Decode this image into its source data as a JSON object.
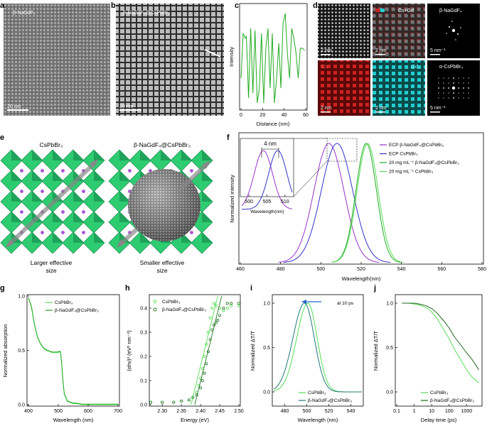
{
  "panels": {
    "a": {
      "letter": "a",
      "label": "β-NaGdF₄",
      "scale": "20 nm"
    },
    "b": {
      "letter": "b",
      "label": "β-NaGdF₄@CsPbBr₃",
      "scale": "20 nm"
    },
    "c": {
      "letter": "c"
    },
    "d": {
      "letter": "d",
      "tiles": [
        {
          "label": "",
          "scale": "2 nm"
        },
        {
          "label": "Cs+Gd",
          "scale": "2 nm"
        },
        {
          "label": "β-NaGdF₄",
          "scale": "5 nm⁻¹"
        },
        {
          "label": "Cs",
          "scale": "2 nm"
        },
        {
          "label": "Gd",
          "scale": "2 nm"
        },
        {
          "label": "α-CsPbBr₃",
          "scale": "5 nm⁻¹"
        }
      ]
    },
    "e": {
      "letter": "e",
      "left_title": "CsPbBr₃",
      "right_title": "β-NaGdF₄@CsPbBr₃",
      "left_caption_1": "Larger effective",
      "left_caption_2": "size",
      "right_caption_1": "Smaller effective",
      "right_caption_2": "size"
    },
    "f": {
      "letter": "f",
      "inset_label": "4 nm",
      "inset_xlabel": "Wavelength(nm)"
    },
    "g": {
      "letter": "g"
    },
    "h": {
      "letter": "h"
    },
    "i": {
      "letter": "i",
      "note": "at 10 ps"
    },
    "j": {
      "letter": "j"
    }
  },
  "colors": {
    "cs_green": "#33cc33",
    "core_green": "#22aa22",
    "ecp_purple": "#9933cc",
    "ecp_blue": "#3333cc",
    "i_teal": "#227777",
    "i_light": "#33dd33",
    "arrow_blue": "#2266cc",
    "cs_map": "#cc2222",
    "gd_map": "#22cccc",
    "octa": "#2ecc71"
  },
  "chart_data": [
    {
      "panel": "c",
      "type": "line",
      "xlabel": "Distance (nm)",
      "ylabel": "Intensity",
      "xlim": [
        0,
        60
      ],
      "xticks": [
        "0",
        "20",
        "40",
        "60"
      ],
      "series": [
        {
          "x": [
            0,
            2,
            4,
            5,
            7,
            9,
            11,
            13,
            15,
            17,
            19,
            21,
            23,
            25,
            27,
            29,
            31,
            33,
            35,
            37,
            39,
            41,
            43,
            45,
            47,
            49,
            51,
            53,
            55,
            57,
            59
          ],
          "y": [
            0.3,
            0.75,
            0.7,
            0.72,
            0.1,
            0.8,
            0.15,
            0.78,
            0.05,
            0.2,
            0.75,
            0.05,
            0.6,
            0.8,
            0.2,
            0.75,
            0.05,
            0.3,
            0.65,
            0.2,
            0.85,
            0.95,
            0.55,
            0.3,
            0.8,
            0.7,
            0.55,
            0.3,
            0.6,
            0.6,
            0.58
          ]
        }
      ]
    },
    {
      "panel": "f",
      "type": "line",
      "xlabel": "Wavelength(nm)",
      "ylabel": "Normalized intensity",
      "xlim": [
        460,
        580
      ],
      "xticks": [
        "460",
        "480",
        "500",
        "520",
        "540",
        "560",
        "580"
      ],
      "series": [
        {
          "name": "ECP β-NaGdF₄@CsPbBr₃",
          "center": 504,
          "width": 10.5,
          "color": "#9933cc"
        },
        {
          "name": "ECP CsPbBr₃",
          "center": 508,
          "width": 11,
          "color": "#3333cc"
        },
        {
          "name": "20 mg mL⁻¹ β-NaGdF₄@CsPbBr₃",
          "center": 522.5,
          "width": 7.2,
          "color": "#22aa22"
        },
        {
          "name": "20 mg mL⁻¹ CsPbBr₃",
          "center": 523.2,
          "width": 7.4,
          "color": "#55dd55"
        }
      ],
      "inset": {
        "xticks": [
          "500",
          "505",
          "510"
        ],
        "xlim": [
          498,
          512
        ]
      }
    },
    {
      "panel": "g",
      "type": "line",
      "xlabel": "Wavelength (nm)",
      "ylabel": "Normalized absorption",
      "xlim": [
        400,
        700
      ],
      "ylim": [
        0,
        1.0
      ],
      "xticks": [
        "400",
        "500",
        "600",
        "700"
      ],
      "yticks": [
        "0.0",
        "0.5",
        "1.0"
      ],
      "series": [
        {
          "name": "CsPbBr₃",
          "color": "#55dd55"
        },
        {
          "name": "β-NaGdF₄@CsPbBr₃",
          "color": "#22aa22"
        }
      ],
      "x": [
        400,
        410,
        420,
        430,
        440,
        450,
        460,
        470,
        480,
        490,
        500,
        505,
        508,
        512,
        516,
        520,
        530,
        540,
        550,
        560,
        580,
        600,
        650,
        700
      ],
      "y": [
        0.98,
        0.9,
        0.74,
        0.62,
        0.56,
        0.52,
        0.5,
        0.49,
        0.48,
        0.48,
        0.48,
        0.49,
        0.47,
        0.36,
        0.2,
        0.1,
        0.03,
        0.02,
        0.01,
        0.01,
        0.0,
        0.0,
        0.0,
        0.0
      ]
    },
    {
      "panel": "h",
      "type": "scatter",
      "xlabel": "Energy (eV)",
      "ylabel": "(αhν)² (eV² nm⁻²)",
      "xlim": [
        2.27,
        2.5
      ],
      "ylim": [
        0,
        0.45
      ],
      "xticks": [
        "2.30",
        "2.35",
        "2.40",
        "2.45",
        "2.50"
      ],
      "yticks": [
        "0.0",
        "0.1",
        "0.2",
        "0.3",
        "0.4"
      ],
      "series": [
        {
          "name": "CsPbBr₃",
          "color": "#55dd55",
          "x": [
            2.27,
            2.3,
            2.33,
            2.35,
            2.37,
            2.38,
            2.39,
            2.395,
            2.4,
            2.405,
            2.41,
            2.415,
            2.42,
            2.425,
            2.43,
            2.435,
            2.44,
            2.45,
            2.46,
            2.47,
            2.48,
            2.5
          ],
          "y": [
            0.01,
            0.01,
            0.01,
            0.015,
            0.02,
            0.03,
            0.05,
            0.08,
            0.11,
            0.15,
            0.2,
            0.25,
            0.3,
            0.36,
            0.4,
            0.42,
            0.41,
            0.4,
            0.39,
            0.4,
            0.41,
            0.41
          ]
        },
        {
          "name": "β-NaGdF₄@CsPbBr₃",
          "color": "#227722",
          "x": [
            2.27,
            2.3,
            2.33,
            2.35,
            2.37,
            2.38,
            2.39,
            2.4,
            2.405,
            2.41,
            2.415,
            2.42,
            2.425,
            2.43,
            2.435,
            2.44,
            2.445,
            2.45,
            2.46,
            2.47,
            2.48,
            2.5
          ],
          "y": [
            0.01,
            0.01,
            0.01,
            0.015,
            0.02,
            0.03,
            0.04,
            0.07,
            0.1,
            0.13,
            0.17,
            0.22,
            0.27,
            0.31,
            0.33,
            0.34,
            0.35,
            0.37,
            0.4,
            0.42,
            0.42,
            0.42
          ]
        }
      ]
    },
    {
      "panel": "i",
      "type": "line",
      "xlabel": "Wavelength (nm)",
      "ylabel": "Normalized ΔT/T",
      "xlim": [
        470,
        550
      ],
      "xticks": [
        "480",
        "500",
        "520",
        "540"
      ],
      "yticks": [
        "0.0",
        "0.5",
        "1.0"
      ],
      "series": [
        {
          "name": "CsPbBr₃",
          "center": 501,
          "width": 12,
          "color": "#55dd55"
        },
        {
          "name": "β-NaGdF₄@CsPbBr₃",
          "center": 498,
          "width": 12.5,
          "color": "#227777"
        }
      ]
    },
    {
      "panel": "j",
      "type": "line",
      "xlabel": "Delay time (ps)",
      "ylabel": "Normalized ΔT/T",
      "xscale": "log",
      "xticks": [
        "0.1",
        "1",
        "10",
        "100",
        "1000"
      ],
      "yticks": [
        "0.0",
        "0.5",
        "1.0"
      ],
      "series": [
        {
          "name": "CsPbBr₃",
          "color": "#55dd55",
          "x": [
            0.2,
            0.5,
            1,
            2,
            5,
            10,
            20,
            50,
            100,
            200,
            500,
            1000,
            2000,
            5000
          ],
          "y": [
            1,
            1,
            0.99,
            0.98,
            0.95,
            0.9,
            0.83,
            0.7,
            0.6,
            0.48,
            0.35,
            0.25,
            0.17,
            0.1
          ]
        },
        {
          "name": "β-NaGdF₄@CsPbBr₃",
          "color": "#226622",
          "x": [
            0.2,
            0.5,
            1,
            2,
            5,
            10,
            20,
            50,
            100,
            200,
            500,
            1000,
            2000,
            5000
          ],
          "y": [
            1,
            1,
            1,
            0.99,
            0.97,
            0.94,
            0.89,
            0.8,
            0.72,
            0.62,
            0.52,
            0.44,
            0.37,
            0.25
          ]
        }
      ]
    }
  ]
}
